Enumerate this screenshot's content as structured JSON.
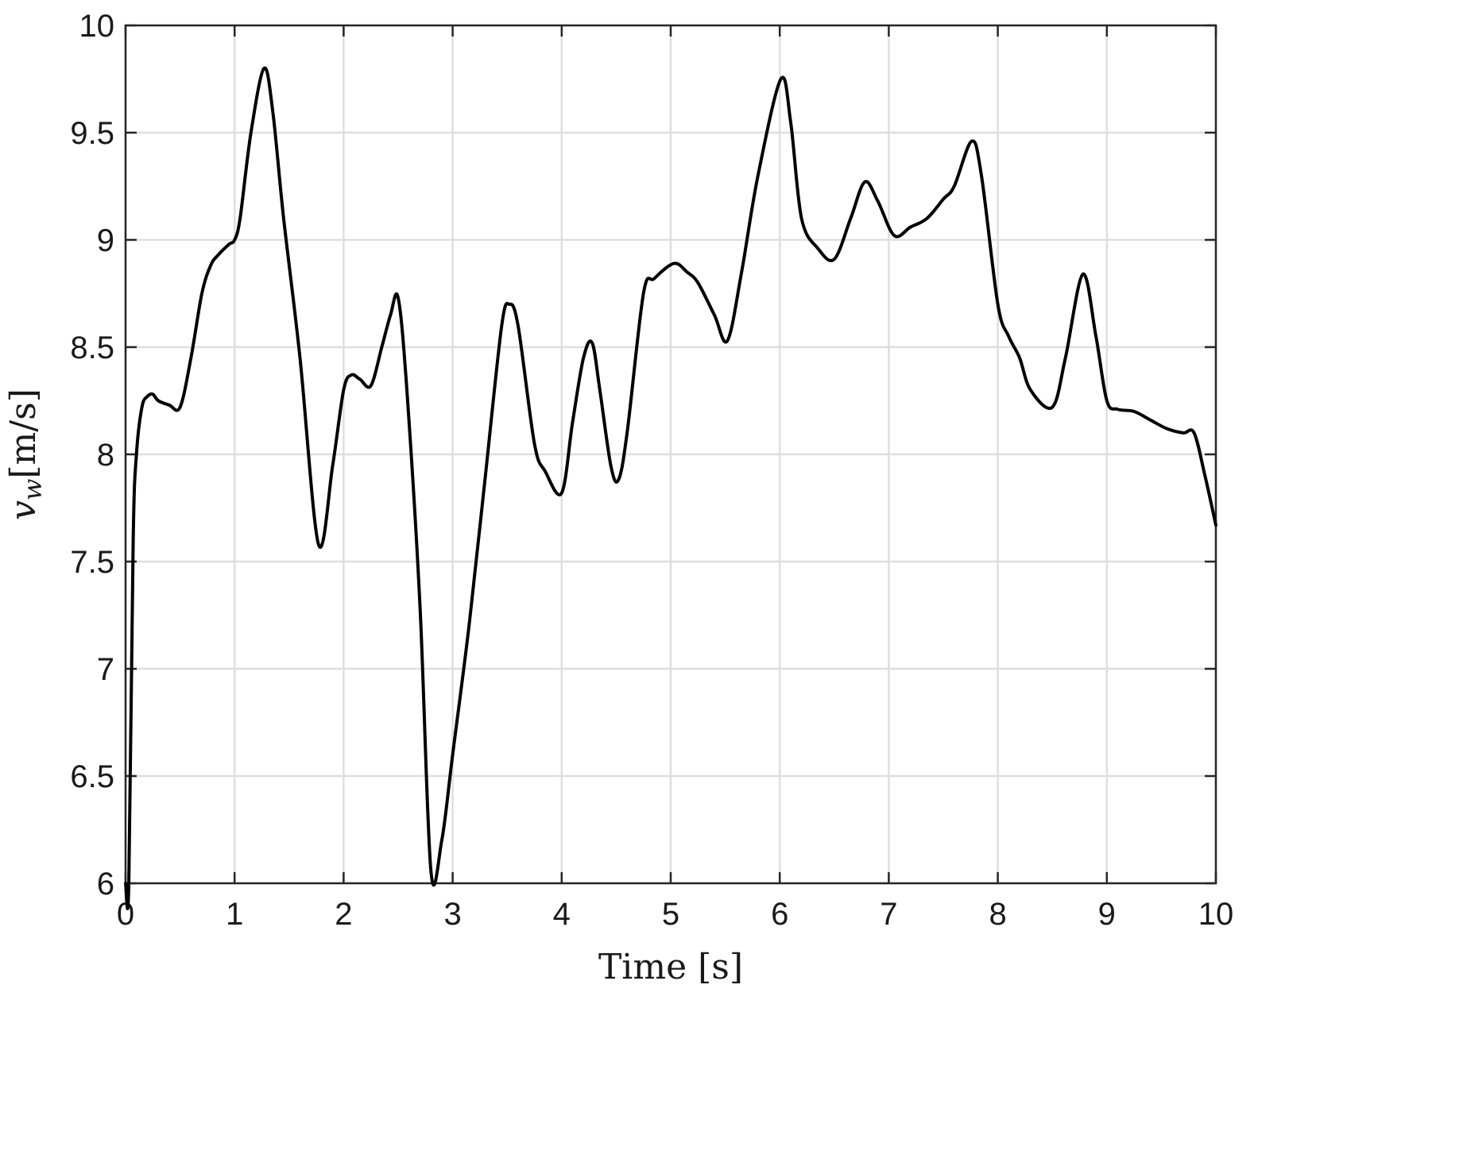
{
  "chart_data": {
    "type": "line",
    "xlabel": "Time [s]",
    "ylabel": "v_w [m/s]",
    "ylabel_symbol": "v",
    "ylabel_subscript": "w",
    "ylabel_unit": "[m/s]",
    "xlim": [
      0,
      10
    ],
    "ylim": [
      6,
      10
    ],
    "xticks": [
      "0",
      "1",
      "2",
      "3",
      "4",
      "5",
      "6",
      "7",
      "8",
      "9",
      "10"
    ],
    "yticks": [
      "6",
      "6.5",
      "7",
      "7.5",
      "8",
      "8.5",
      "9",
      "9.5",
      "10"
    ],
    "grid": true,
    "legend": "none",
    "line_color": "#000000",
    "series": [
      {
        "x": [
          0,
          0.03,
          0.07,
          0.1,
          0.15,
          0.2,
          0.25,
          0.3,
          0.4,
          0.5,
          0.6,
          0.7,
          0.78,
          0.85,
          0.95,
          1.0,
          1.05,
          1.15,
          1.27,
          1.35,
          1.45,
          1.6,
          1.77,
          1.9,
          2.0,
          2.07,
          2.15,
          2.25,
          2.35,
          2.43,
          2.5,
          2.58,
          2.7,
          2.8,
          2.9,
          3.0,
          3.15,
          3.3,
          3.45,
          3.52,
          3.6,
          3.75,
          3.85,
          4.0,
          4.1,
          4.2,
          4.28,
          4.35,
          4.45,
          4.52,
          4.6,
          4.75,
          4.85,
          5.03,
          5.15,
          5.25,
          5.4,
          5.52,
          5.65,
          5.8,
          6.01,
          6.1,
          6.2,
          6.35,
          6.5,
          6.65,
          6.78,
          6.9,
          7.05,
          7.2,
          7.35,
          7.5,
          7.6,
          7.76,
          7.85,
          8.0,
          8.1,
          8.2,
          8.3,
          8.5,
          8.62,
          8.78,
          8.9,
          9.0,
          9.1,
          9.25,
          9.4,
          9.55,
          9.7,
          9.8,
          9.9,
          10.0
        ],
        "y": [
          6.0,
          6.0,
          7.6,
          8.0,
          8.22,
          8.27,
          8.28,
          8.25,
          8.23,
          8.22,
          8.45,
          8.75,
          8.88,
          8.93,
          8.98,
          9.0,
          9.1,
          9.5,
          9.8,
          9.6,
          9.1,
          8.45,
          7.58,
          7.95,
          8.3,
          8.37,
          8.35,
          8.32,
          8.5,
          8.65,
          8.73,
          8.3,
          7.3,
          6.06,
          6.2,
          6.6,
          7.2,
          7.9,
          8.6,
          8.7,
          8.6,
          8.05,
          7.92,
          7.82,
          8.15,
          8.45,
          8.52,
          8.3,
          7.95,
          7.88,
          8.1,
          8.75,
          8.82,
          8.89,
          8.85,
          8.8,
          8.65,
          8.53,
          8.85,
          9.3,
          9.75,
          9.55,
          9.1,
          8.96,
          8.91,
          9.1,
          9.27,
          9.18,
          9.02,
          9.06,
          9.1,
          9.19,
          9.25,
          9.46,
          9.3,
          8.7,
          8.55,
          8.45,
          8.3,
          8.22,
          8.45,
          8.84,
          8.55,
          8.25,
          8.21,
          8.2,
          8.16,
          8.12,
          8.1,
          8.1,
          7.9,
          7.67
        ]
      }
    ]
  }
}
